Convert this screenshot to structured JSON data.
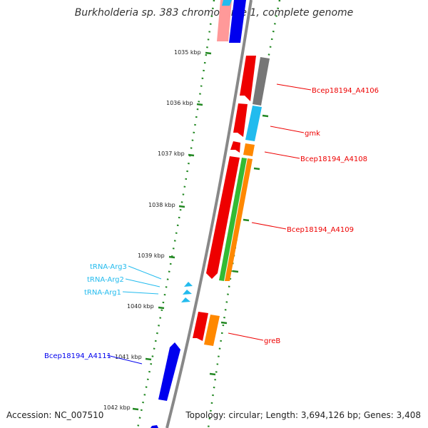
{
  "title": "Burkholderia sp. 383 chromosome 1, complete genome",
  "footer": {
    "accession": "Accession: NC_007510",
    "summary": "Topology: circular; Length: 3,694,126 bp; Genes: 3,408"
  },
  "colors": {
    "red": "#ee0000",
    "gray": "#777777",
    "cyan": "#22bbee",
    "orange": "#ff8800",
    "green": "#33bb33",
    "blue": "#0000ee",
    "pink": "#ff9999",
    "backbone": "#888888",
    "tick": "#228822"
  },
  "ticks": [
    {
      "label": "1035 kbp"
    },
    {
      "label": "1036 kbp"
    },
    {
      "label": "1037 kbp"
    },
    {
      "label": "1038 kbp"
    },
    {
      "label": "1039 kbp"
    },
    {
      "label": "1040 kbp"
    },
    {
      "label": "1041 kbp"
    },
    {
      "label": "1042 kbp"
    }
  ],
  "gene_labels": [
    {
      "name": "Bcep18194_A4106",
      "color": "#ee0000"
    },
    {
      "name": "gmk",
      "color": "#ee0000"
    },
    {
      "name": "Bcep18194_A4108",
      "color": "#ee0000"
    },
    {
      "name": "Bcep18194_A4109",
      "color": "#ee0000"
    },
    {
      "name": "tRNA-Arg3",
      "color": "#22bbee"
    },
    {
      "name": "tRNA-Arg2",
      "color": "#22bbee"
    },
    {
      "name": "tRNA-Arg1",
      "color": "#22bbee"
    },
    {
      "name": "greB",
      "color": "#ee0000"
    },
    {
      "name": "Bcep18194_A4111",
      "color": "#0000ee"
    }
  ]
}
